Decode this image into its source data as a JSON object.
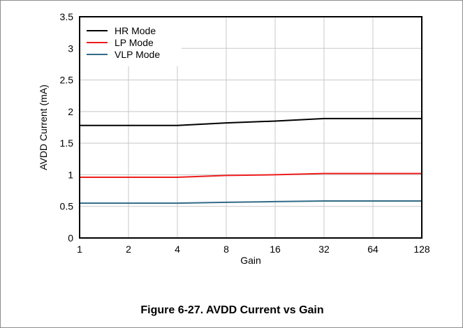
{
  "caption": "Figure 6-27. AVDD Current vs Gain",
  "chart_data": {
    "type": "line",
    "title": "",
    "xlabel": "Gain",
    "ylabel": "AVDD Current (mA)",
    "categories": [
      "1",
      "2",
      "4",
      "8",
      "16",
      "32",
      "64",
      "128"
    ],
    "ylim": [
      0,
      3.5
    ],
    "yticks": [
      "0",
      "0.5",
      "1",
      "1.5",
      "2",
      "2.5",
      "3",
      "3.5"
    ],
    "grid": true,
    "legend_position": "top-left",
    "series": [
      {
        "name": "HR Mode",
        "color": "#000000",
        "values": [
          1.78,
          1.78,
          1.78,
          1.82,
          1.85,
          1.89,
          1.89,
          1.89
        ]
      },
      {
        "name": "LP Mode",
        "color": "#ee1c1c",
        "values": [
          0.96,
          0.96,
          0.96,
          0.99,
          1.0,
          1.02,
          1.02,
          1.02
        ]
      },
      {
        "name": "VLP Mode",
        "color": "#2f6a86",
        "values": [
          0.55,
          0.55,
          0.55,
          0.565,
          0.575,
          0.585,
          0.585,
          0.585
        ]
      }
    ]
  }
}
